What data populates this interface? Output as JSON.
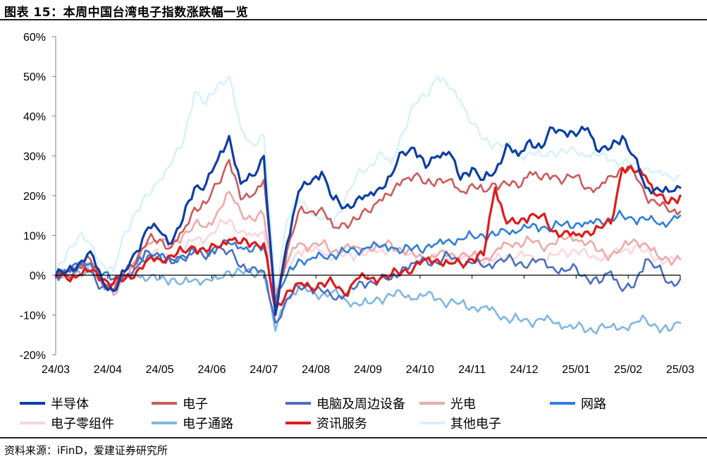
{
  "figure": {
    "title": "图表 15：本周中国台湾电子指数涨跌幅一览",
    "source": "资料来源：iFinD，爱建证券研究所"
  },
  "chart_data": {
    "type": "line",
    "title": "图表 15：本周中国台湾电子指数涨跌幅一览",
    "xlabel": "",
    "ylabel": "",
    "x_ticks": [
      "24/03",
      "24/04",
      "24/05",
      "24/06",
      "24/07",
      "24/08",
      "24/09",
      "24/10",
      "24/11",
      "24/12",
      "25/01",
      "25/02",
      "25/03"
    ],
    "y_ticks": [
      "-20%",
      "-10%",
      "0%",
      "10%",
      "20%",
      "30%",
      "40%",
      "50%",
      "60%"
    ],
    "ylim": [
      -20,
      60
    ],
    "y_unit": "%",
    "grid": false,
    "legend_position": "bottom",
    "series": [
      {
        "name": "半导体",
        "color": "#0d3ea6",
        "width": 3.2,
        "values": [
          0,
          1,
          3,
          6,
          -1,
          -4,
          1,
          6,
          12,
          11,
          8,
          14,
          22,
          23,
          29,
          35,
          23,
          25,
          30,
          -10,
          8,
          21,
          23,
          26,
          19,
          17,
          19,
          20,
          22,
          25,
          31,
          32,
          27,
          30,
          31,
          24,
          27,
          24,
          26,
          33,
          30,
          34,
          32,
          37,
          36,
          35,
          37,
          31,
          32,
          35,
          30,
          22,
          22,
          21,
          22
        ]
      },
      {
        "name": "电子",
        "color": "#cc5a5a",
        "width": 2.6,
        "values": [
          0,
          0,
          2,
          4,
          -2,
          -4,
          1,
          4,
          9,
          9,
          7,
          11,
          17,
          18,
          23,
          29,
          19,
          20,
          24,
          -8,
          6,
          16,
          16,
          17,
          12,
          13,
          14,
          16,
          19,
          20,
          24,
          25,
          23,
          24,
          24,
          21,
          23,
          21,
          23,
          23,
          22,
          26,
          24,
          25,
          24,
          25,
          22,
          22,
          25,
          27,
          26,
          20,
          18,
          16,
          16
        ]
      },
      {
        "name": "电脑及周边设备",
        "color": "#4a6fc0",
        "width": 2.6,
        "values": [
          0,
          1,
          2,
          1,
          -3,
          -2,
          0,
          2,
          6,
          5,
          3,
          4,
          6,
          4,
          7,
          6,
          2,
          2,
          1,
          -12,
          -6,
          -3,
          -3,
          -4,
          -6,
          -5,
          -3,
          -2,
          -1,
          -1,
          2,
          3,
          4,
          3,
          5,
          3,
          3,
          2,
          3,
          4,
          3,
          3,
          4,
          2,
          1,
          2,
          -1,
          -2,
          1,
          -4,
          -3,
          4,
          2,
          -2,
          -1
        ]
      },
      {
        "name": "光电",
        "color": "#eea8a8",
        "width": 2.6,
        "values": [
          0,
          1,
          2,
          3,
          -2,
          -5,
          0,
          3,
          8,
          9,
          7,
          10,
          13,
          12,
          16,
          21,
          16,
          14,
          15,
          -4,
          3,
          8,
          7,
          8,
          6,
          7,
          7,
          7,
          7,
          8,
          6,
          5,
          4,
          5,
          5,
          5,
          5,
          4,
          6,
          8,
          8,
          9,
          7,
          8,
          9,
          9,
          8,
          6,
          5,
          7,
          9,
          8,
          5,
          4,
          4
        ]
      },
      {
        "name": "网路",
        "color": "#2b7fdd",
        "width": 2.6,
        "values": [
          0,
          1,
          2,
          3,
          0,
          -1,
          1,
          3,
          5,
          5,
          4,
          5,
          6,
          6,
          7,
          8,
          7,
          6,
          7,
          -6,
          0,
          4,
          4,
          5,
          5,
          6,
          6,
          7,
          7,
          7,
          6,
          7,
          7,
          8,
          9,
          9,
          10,
          10,
          10,
          11,
          11,
          12,
          12,
          12,
          13,
          13,
          13,
          14,
          14,
          15,
          14,
          14,
          13,
          13,
          15
        ]
      },
      {
        "name": "电子零组件",
        "color": "#fad6dc",
        "width": 2.6,
        "values": [
          0,
          1,
          2,
          3,
          -1,
          -2,
          1,
          3,
          6,
          5,
          4,
          6,
          9,
          9,
          12,
          14,
          11,
          10,
          11,
          -5,
          2,
          6,
          6,
          6,
          4,
          5,
          5,
          6,
          6,
          7,
          6,
          5,
          4,
          4,
          4,
          4,
          4,
          3,
          4,
          5,
          5,
          5,
          4,
          5,
          6,
          6,
          5,
          4,
          5,
          6,
          7,
          6,
          4,
          4,
          4
        ]
      },
      {
        "name": "电子通路",
        "color": "#7fb6e6",
        "width": 2.6,
        "values": [
          0,
          0,
          1,
          1,
          -2,
          -4,
          -1,
          0,
          -1,
          -1,
          -1,
          -2,
          -1,
          -1,
          -1,
          1,
          1,
          0,
          1,
          -14,
          -6,
          -3,
          -4,
          -5,
          -4,
          -6,
          -7,
          -7,
          -6,
          -5,
          -5,
          -6,
          -5,
          -6,
          -7,
          -7,
          -8,
          -8,
          -9,
          -11,
          -11,
          -12,
          -11,
          -12,
          -13,
          -13,
          -14,
          -13,
          -13,
          -13,
          -12,
          -11,
          -13,
          -14,
          -12
        ]
      },
      {
        "name": "资讯服务",
        "color": "#e01a1a",
        "width": 3.2,
        "values": [
          0,
          -1,
          0,
          1,
          -1,
          -2,
          -1,
          1,
          4,
          4,
          5,
          6,
          7,
          6,
          7,
          9,
          8,
          8,
          8,
          -9,
          -4,
          -2,
          -3,
          -2,
          -2,
          -5,
          -1,
          -1,
          -1,
          0,
          1,
          2,
          4,
          4,
          3,
          3,
          4,
          5,
          22,
          13,
          13,
          15,
          15,
          11,
          11,
          10,
          11,
          12,
          13,
          27,
          26,
          25,
          20,
          18,
          20
        ]
      },
      {
        "name": "其他电子",
        "color": "#d7f1fd",
        "width": 2.6,
        "values": [
          0,
          6,
          10,
          8,
          3,
          1,
          11,
          16,
          20,
          24,
          28,
          33,
          46,
          43,
          48,
          50,
          37,
          33,
          35,
          -4,
          14,
          19,
          16,
          14,
          13,
          19,
          25,
          27,
          31,
          28,
          36,
          43,
          45,
          50,
          47,
          44,
          38,
          34,
          33,
          33,
          30,
          31,
          30,
          31,
          31,
          31,
          30,
          30,
          29,
          28,
          28,
          27,
          26,
          25,
          25
        ]
      }
    ]
  }
}
